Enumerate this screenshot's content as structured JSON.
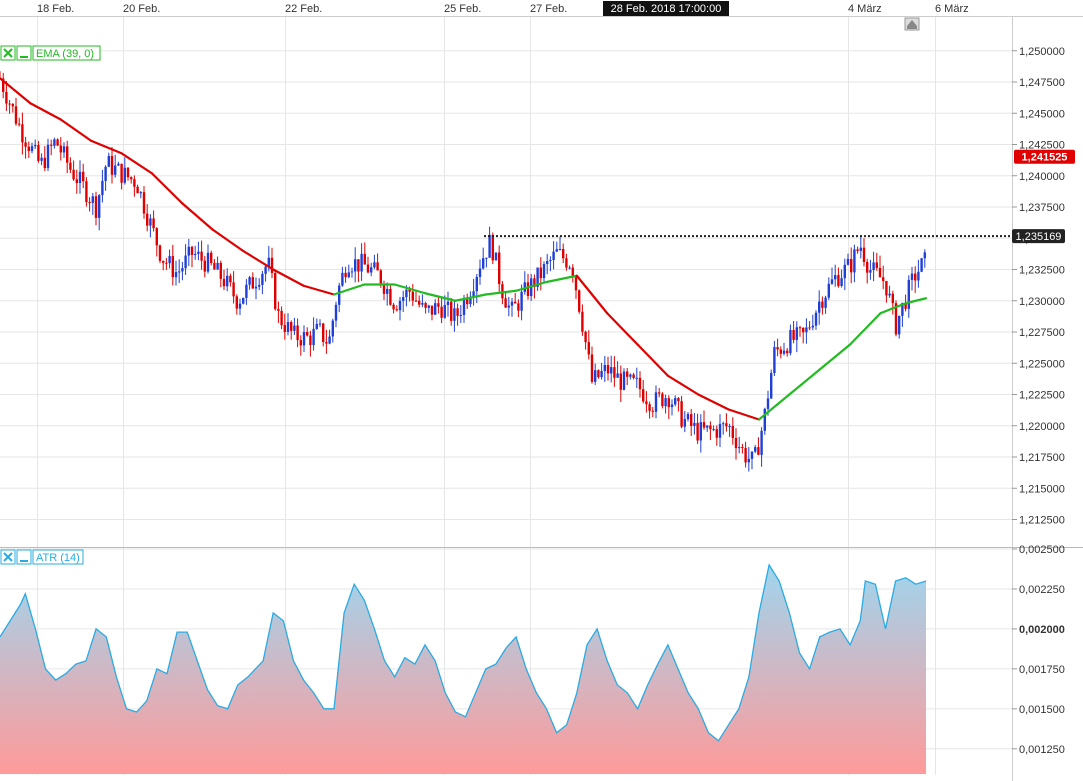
{
  "chart_data": [
    {
      "type": "candlestick",
      "x_ticks": [
        "18 Feb.",
        "20 Feb.",
        "22 Feb.",
        "25 Feb.",
        "27 Feb.",
        "4 März",
        "6 März"
      ],
      "crosshair_label": "28 Feb. 2018 17:00:00",
      "y_ticks": [
        "1,250000",
        "1,247500",
        "1,245000",
        "1,242500",
        "1,240000",
        "1,237500",
        "1,235000",
        "1,232500",
        "1,230000",
        "1,227500",
        "1,225000",
        "1,222500",
        "1,220000",
        "1,217500",
        "1,215000",
        "1,212500"
      ],
      "ylim": [
        1.2115,
        1.2515
      ],
      "last_price": {
        "label": "1,241525",
        "value": 1.241525,
        "color": "#e00000"
      },
      "marker_price": {
        "label": "1,235169",
        "value": 1.235169
      },
      "legend": {
        "label": "EMA (39, 0)",
        "color": "#22bb22"
      },
      "colors": {
        "up": "#1f3fd6",
        "down": "#e00000",
        "ema_up": "#22bb22",
        "ema_down": "#e00000"
      },
      "close_path": [
        [
          0,
          1.2478
        ],
        [
          0.02,
          1.2438
        ],
        [
          0.04,
          1.2408
        ],
        [
          0.055,
          1.2428
        ],
        [
          0.07,
          1.2405
        ],
        [
          0.085,
          1.2388
        ],
        [
          0.095,
          1.2375
        ],
        [
          0.105,
          1.241
        ],
        [
          0.12,
          1.2402
        ],
        [
          0.135,
          1.2395
        ],
        [
          0.145,
          1.237
        ],
        [
          0.16,
          1.2335
        ],
        [
          0.175,
          1.2322
        ],
        [
          0.19,
          1.2338
        ],
        [
          0.205,
          1.233
        ],
        [
          0.22,
          1.2318
        ],
        [
          0.235,
          1.23
        ],
        [
          0.25,
          1.2315
        ],
        [
          0.265,
          1.233
        ],
        [
          0.275,
          1.2288
        ],
        [
          0.29,
          1.2272
        ],
        [
          0.305,
          1.227
        ],
        [
          0.315,
          1.2276
        ],
        [
          0.325,
          1.2266
        ],
        [
          0.333,
          1.2305
        ],
        [
          0.343,
          1.2332
        ],
        [
          0.36,
          1.2328
        ],
        [
          0.375,
          1.232
        ],
        [
          0.39,
          1.2298
        ],
        [
          0.405,
          1.2308
        ],
        [
          0.42,
          1.229
        ],
        [
          0.435,
          1.2296
        ],
        [
          0.45,
          1.2286
        ],
        [
          0.465,
          1.231
        ],
        [
          0.475,
          1.2332
        ],
        [
          0.485,
          1.2348
        ],
        [
          0.495,
          1.2312
        ],
        [
          0.505,
          1.229
        ],
        [
          0.52,
          1.2308
        ],
        [
          0.535,
          1.2322
        ],
        [
          0.55,
          1.2338
        ],
        [
          0.565,
          1.233
        ],
        [
          0.575,
          1.2285
        ],
        [
          0.585,
          1.2235
        ],
        [
          0.6,
          1.2245
        ],
        [
          0.615,
          1.2235
        ],
        [
          0.63,
          1.2232
        ],
        [
          0.645,
          1.2218
        ],
        [
          0.66,
          1.2225
        ],
        [
          0.675,
          1.2205
        ],
        [
          0.69,
          1.2195
        ],
        [
          0.705,
          1.2196
        ],
        [
          0.72,
          1.22
        ],
        [
          0.735,
          1.2178
        ],
        [
          0.745,
          1.217
        ],
        [
          0.755,
          1.2205
        ],
        [
          0.765,
          1.2258
        ],
        [
          0.78,
          1.2268
        ],
        [
          0.795,
          1.2272
        ],
        [
          0.81,
          1.23
        ],
        [
          0.825,
          1.2318
        ],
        [
          0.84,
          1.2328
        ],
        [
          0.85,
          1.2345
        ],
        [
          0.86,
          1.2325
        ],
        [
          0.875,
          1.2315
        ],
        [
          0.885,
          1.228
        ],
        [
          0.895,
          1.2302
        ],
        [
          0.905,
          1.2322
        ],
        [
          0.915,
          1.2332
        ]
      ],
      "ema_path": [
        [
          0,
          1.2478
        ],
        [
          0.03,
          1.2458
        ],
        [
          0.06,
          1.2445
        ],
        [
          0.09,
          1.2428
        ],
        [
          0.12,
          1.2418
        ],
        [
          0.15,
          1.2402
        ],
        [
          0.18,
          1.2378
        ],
        [
          0.21,
          1.2357
        ],
        [
          0.24,
          1.234
        ],
        [
          0.27,
          1.2325
        ],
        [
          0.3,
          1.2312
        ],
        [
          0.33,
          1.2305
        ],
        [
          0.36,
          1.2313
        ],
        [
          0.39,
          1.2313
        ],
        [
          0.42,
          1.2306
        ],
        [
          0.45,
          1.23
        ],
        [
          0.48,
          1.2305
        ],
        [
          0.51,
          1.2308
        ],
        [
          0.54,
          1.2315
        ],
        [
          0.57,
          1.232
        ],
        [
          0.6,
          1.229
        ],
        [
          0.63,
          1.2265
        ],
        [
          0.66,
          1.224
        ],
        [
          0.69,
          1.2225
        ],
        [
          0.72,
          1.2213
        ],
        [
          0.75,
          1.2205
        ],
        [
          0.78,
          1.2225
        ],
        [
          0.81,
          1.2245
        ],
        [
          0.84,
          1.2265
        ],
        [
          0.87,
          1.229
        ],
        [
          0.895,
          1.2298
        ],
        [
          0.915,
          1.2302
        ]
      ],
      "ema_split_x": 0.755,
      "ema_split_x2": 0.567
    },
    {
      "type": "area",
      "legend": {
        "label": "ATR (14)",
        "color": "#29abe2"
      },
      "y_ticks": [
        "0,002500",
        "0,002250",
        "0,002000",
        "0,001750",
        "0,001500",
        "0,001250"
      ],
      "y_bold_tick": "0,002000",
      "ylim": [
        0.00118,
        0.0025
      ],
      "colors": {
        "line": "#29abe2",
        "fill_top": "#9fd5ee",
        "fill_bottom": "#ff9a9a"
      },
      "path": [
        [
          0,
          0.00195
        ],
        [
          0.01,
          0.00205
        ],
        [
          0.02,
          0.00215
        ],
        [
          0.025,
          0.00222
        ],
        [
          0.035,
          0.002
        ],
        [
          0.045,
          0.00175
        ],
        [
          0.055,
          0.00168
        ],
        [
          0.065,
          0.00172
        ],
        [
          0.075,
          0.00178
        ],
        [
          0.085,
          0.0018
        ],
        [
          0.095,
          0.002
        ],
        [
          0.105,
          0.00195
        ],
        [
          0.115,
          0.0017
        ],
        [
          0.125,
          0.0015
        ],
        [
          0.135,
          0.00148
        ],
        [
          0.145,
          0.00155
        ],
        [
          0.155,
          0.00175
        ],
        [
          0.165,
          0.00172
        ],
        [
          0.175,
          0.00198
        ],
        [
          0.185,
          0.00198
        ],
        [
          0.195,
          0.0018
        ],
        [
          0.205,
          0.00162
        ],
        [
          0.215,
          0.00152
        ],
        [
          0.225,
          0.0015
        ],
        [
          0.235,
          0.00165
        ],
        [
          0.245,
          0.0017
        ],
        [
          0.26,
          0.0018
        ],
        [
          0.27,
          0.0021
        ],
        [
          0.28,
          0.00205
        ],
        [
          0.29,
          0.0018
        ],
        [
          0.3,
          0.00168
        ],
        [
          0.31,
          0.0016
        ],
        [
          0.32,
          0.0015
        ],
        [
          0.33,
          0.0015
        ],
        [
          0.34,
          0.0021
        ],
        [
          0.35,
          0.00228
        ],
        [
          0.36,
          0.00218
        ],
        [
          0.37,
          0.002
        ],
        [
          0.38,
          0.0018
        ],
        [
          0.39,
          0.0017
        ],
        [
          0.4,
          0.00182
        ],
        [
          0.41,
          0.00178
        ],
        [
          0.42,
          0.0019
        ],
        [
          0.43,
          0.0018
        ],
        [
          0.44,
          0.0016
        ],
        [
          0.45,
          0.00148
        ],
        [
          0.46,
          0.00145
        ],
        [
          0.47,
          0.0016
        ],
        [
          0.48,
          0.00175
        ],
        [
          0.49,
          0.00178
        ],
        [
          0.5,
          0.00188
        ],
        [
          0.51,
          0.00195
        ],
        [
          0.52,
          0.00175
        ],
        [
          0.53,
          0.0016
        ],
        [
          0.54,
          0.0015
        ],
        [
          0.55,
          0.00135
        ],
        [
          0.56,
          0.0014
        ],
        [
          0.57,
          0.0016
        ],
        [
          0.58,
          0.0019
        ],
        [
          0.59,
          0.002
        ],
        [
          0.6,
          0.0018
        ],
        [
          0.61,
          0.00165
        ],
        [
          0.62,
          0.0016
        ],
        [
          0.63,
          0.0015
        ],
        [
          0.64,
          0.00165
        ],
        [
          0.65,
          0.00178
        ],
        [
          0.66,
          0.0019
        ],
        [
          0.67,
          0.00175
        ],
        [
          0.68,
          0.0016
        ],
        [
          0.69,
          0.0015
        ],
        [
          0.7,
          0.00135
        ],
        [
          0.71,
          0.0013
        ],
        [
          0.72,
          0.0014
        ],
        [
          0.73,
          0.0015
        ],
        [
          0.74,
          0.0017
        ],
        [
          0.75,
          0.0021
        ],
        [
          0.76,
          0.0024
        ],
        [
          0.77,
          0.0023
        ],
        [
          0.78,
          0.0021
        ],
        [
          0.79,
          0.00185
        ],
        [
          0.8,
          0.00175
        ],
        [
          0.81,
          0.00195
        ],
        [
          0.82,
          0.00198
        ],
        [
          0.83,
          0.002
        ],
        [
          0.84,
          0.0019
        ],
        [
          0.85,
          0.00205
        ],
        [
          0.855,
          0.0023
        ],
        [
          0.865,
          0.00228
        ],
        [
          0.875,
          0.002
        ],
        [
          0.885,
          0.0023
        ],
        [
          0.895,
          0.00232
        ],
        [
          0.905,
          0.00228
        ],
        [
          0.915,
          0.0023
        ]
      ]
    }
  ]
}
